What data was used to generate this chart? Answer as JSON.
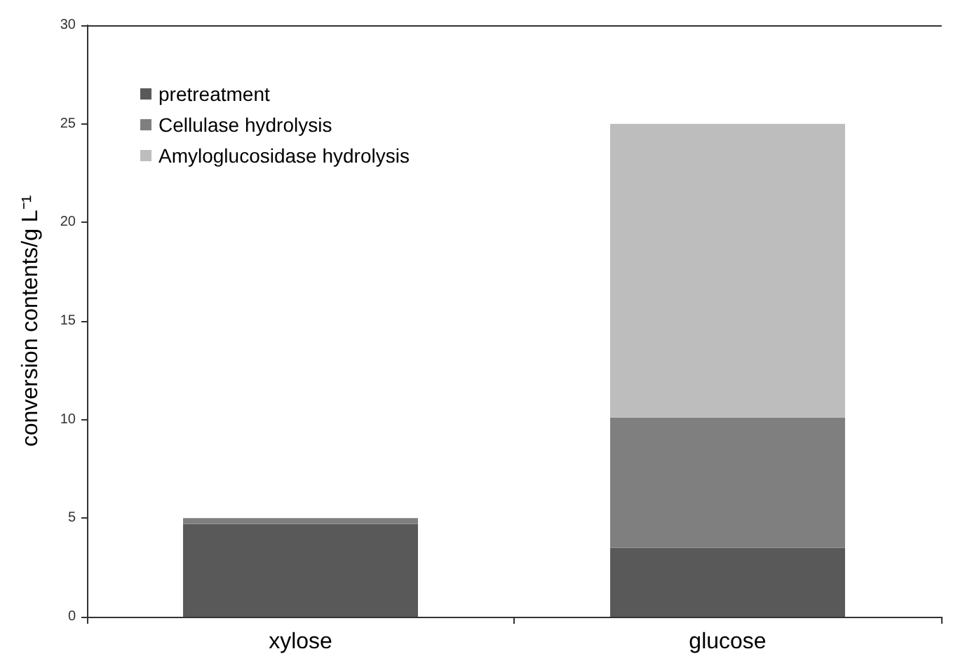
{
  "chart_data": {
    "type": "bar",
    "ylabel": "conversion contents/g L⁻¹",
    "categories": [
      "xylose",
      "glucose"
    ],
    "stacked": true,
    "series": [
      {
        "name": "pretreatment",
        "color": "#595959",
        "values": [
          4.7,
          3.5
        ]
      },
      {
        "name": "Cellulase hydrolysis",
        "color": "#7f7f7f",
        "values": [
          0.3,
          6.6
        ]
      },
      {
        "name": "Amyloglucosidase hydrolysis",
        "color": "#bdbdbd",
        "values": [
          0,
          14.9
        ]
      }
    ],
    "ylim": [
      0,
      30
    ],
    "yticks": [
      0,
      5,
      10,
      15,
      20,
      25,
      30
    ],
    "grid": false,
    "legend": "top left"
  }
}
